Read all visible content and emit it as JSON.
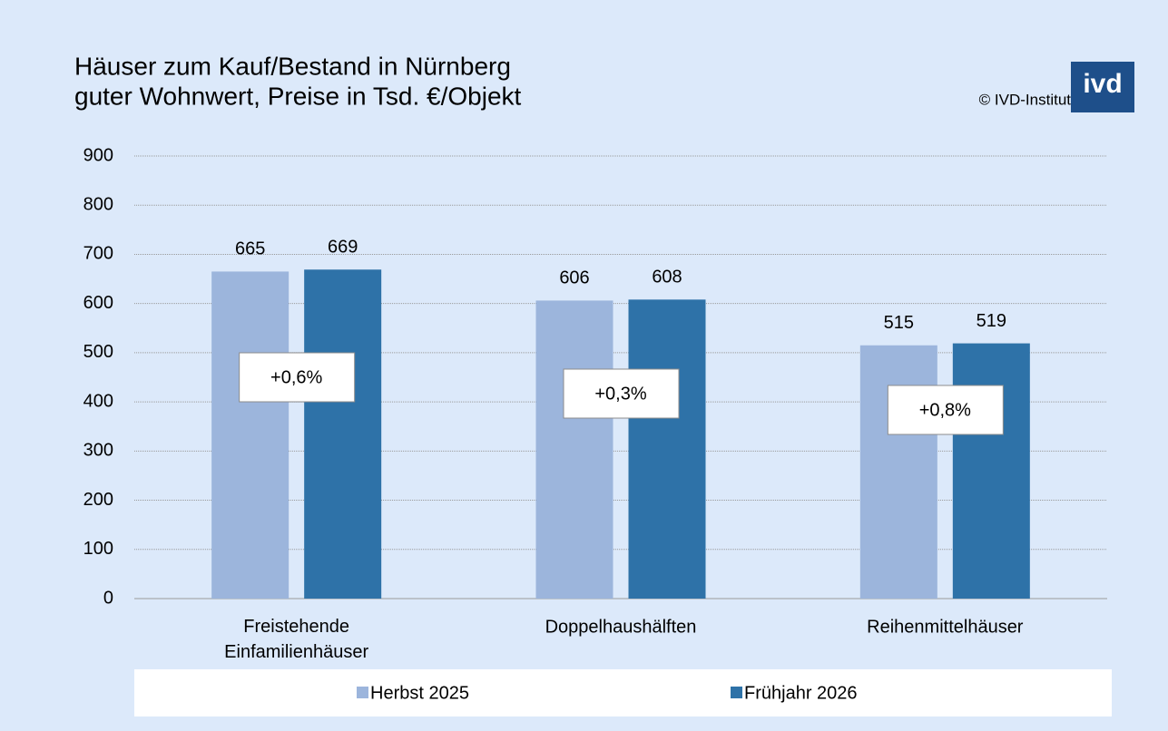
{
  "chart_data": {
    "type": "bar",
    "title": [
      "Häuser zum Kauf/Bestand in Nürnberg",
      "guter Wohnwert, Preise in Tsd. €/Objekt"
    ],
    "source": "© IVD-Institut",
    "logo": "ivd",
    "categories": [
      "Freistehende Einfamilienhäuser",
      "Doppelhaushälften",
      "Reihenmittelhäuser"
    ],
    "series": [
      {
        "name": "Herbst 2025",
        "color": "#9cb5dc",
        "values": [
          665,
          606,
          515
        ]
      },
      {
        "name": "Frühjahr 2026",
        "color": "#2e72a8",
        "values": [
          669,
          608,
          519
        ]
      }
    ],
    "annotations": [
      "+0,6%",
      "+0,3%",
      "+0,8%"
    ],
    "ylim": [
      0,
      900
    ],
    "yticks": [
      0,
      100,
      200,
      300,
      400,
      500,
      600,
      700,
      800,
      900
    ],
    "grid": true,
    "legend": "bottom"
  }
}
